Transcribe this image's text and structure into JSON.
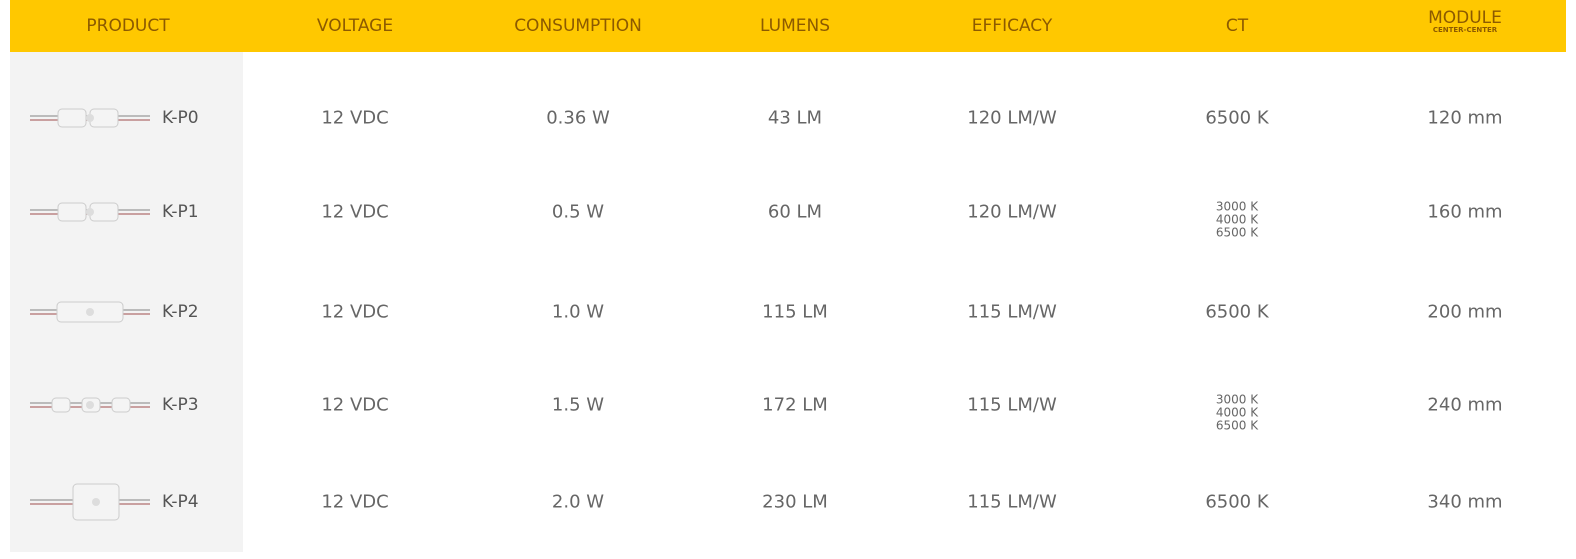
{
  "header": {
    "columns": [
      {
        "label": "PRODUCT"
      },
      {
        "label": "VOLTAGE"
      },
      {
        "label": "CONSUMPTION"
      },
      {
        "label": "LUMENS"
      },
      {
        "label": "EFFICACY"
      },
      {
        "label": "CT"
      },
      {
        "label": "MODULE",
        "sublabel": "CENTER-CENTER"
      }
    ]
  },
  "rows": [
    {
      "product": "K-P0",
      "voltage": "12 VDC",
      "consumption": "0.36 W",
      "lumens": "43 LM",
      "efficacy": "120 LM/W",
      "ct": [
        "6500 K"
      ],
      "module": "120 mm"
    },
    {
      "product": "K-P1",
      "voltage": "12 VDC",
      "consumption": "0.5 W",
      "lumens": "60 LM",
      "efficacy": "120 LM/W",
      "ct": [
        "3000 K",
        "4000 K",
        "6500 K"
      ],
      "module": "160 mm"
    },
    {
      "product": "K-P2",
      "voltage": "12 VDC",
      "consumption": "1.0 W",
      "lumens": "115 LM",
      "efficacy": "115 LM/W",
      "ct": [
        "6500 K"
      ],
      "module": "200 mm"
    },
    {
      "product": "K-P3",
      "voltage": "12 VDC",
      "consumption": "1.5 W",
      "lumens": "172 LM",
      "efficacy": "115 LM/W",
      "ct": [
        "3000 K",
        "4000 K",
        "6500 K"
      ],
      "module": "240 mm"
    },
    {
      "product": "K-P4",
      "voltage": "12 VDC",
      "consumption": "2.0 W",
      "lumens": "230 LM",
      "efficacy": "115 LM/W",
      "ct": [
        "6500 K"
      ],
      "module": "340 mm"
    }
  ]
}
